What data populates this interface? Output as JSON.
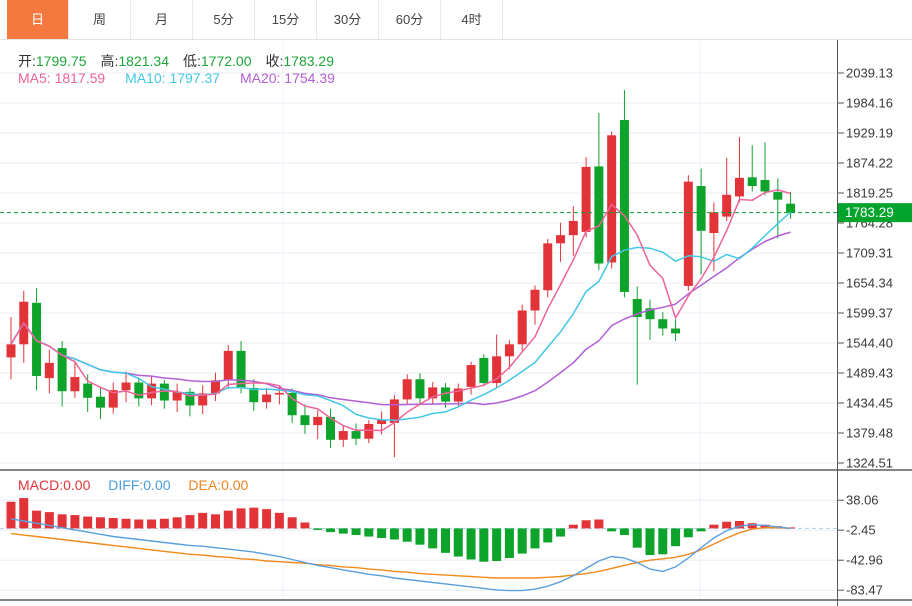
{
  "tabs": {
    "items": [
      {
        "label": "日",
        "active": true
      },
      {
        "label": "周",
        "active": false
      },
      {
        "label": "月",
        "active": false
      },
      {
        "label": "5分",
        "active": false
      },
      {
        "label": "15分",
        "active": false
      },
      {
        "label": "30分",
        "active": false
      },
      {
        "label": "60分",
        "active": false
      },
      {
        "label": "4时",
        "active": false
      }
    ]
  },
  "readout": {
    "open_label": "开:",
    "open": "1799.75",
    "high_label": "高:",
    "high": "1821.34",
    "low_label": "低:",
    "low": "1772.00",
    "close_label": "收:",
    "close": "1783.29",
    "ma5_label": "MA5:",
    "ma5": "1817.59",
    "ma10_label": "MA10:",
    "ma10": "1797.37",
    "ma20_label": "MA20:",
    "ma20": "1754.39",
    "macd_label": "MACD:",
    "macd": "0.00",
    "diff_label": "DIFF:",
    "diff": "0.00",
    "dea_label": "DEA:",
    "dea": "0.00"
  },
  "colors": {
    "accent_tab": "#f3793f",
    "up_candle": "#e23438",
    "down_candle": "#0ea32a",
    "value_green": "#1ca53a",
    "ma5": "#ee6399",
    "ma10": "#42c7e4",
    "ma20": "#b35fd5",
    "diff_line": "#5b9fdc",
    "dea_line": "#f08a1c",
    "badge_green": "#00a32b",
    "grid": "#e9eef5",
    "grid_vertical": "#eef2f7",
    "zero_dash": "#a9cde9",
    "price_dash": "#0ca32e",
    "axis": "#555555",
    "axis_text": "#3a3a3a",
    "panel_border": "#3c3c3c"
  },
  "chart_data": {
    "type": "candlestick",
    "panels": [
      "price",
      "macd"
    ],
    "convention": "red=up green=down",
    "grid": true,
    "legend_position": "none",
    "current_price": 1783.29,
    "ohlc_readout": {
      "open": 1799.75,
      "high": 1821.34,
      "low": 1772.0,
      "close": 1783.29
    },
    "ma_readout": {
      "ma5": 1817.59,
      "ma10": 1797.37,
      "ma20": 1754.39
    },
    "ma_periods": [
      5,
      10,
      20
    ],
    "price_axis_ticks": [
      "2039.13",
      "1984.16",
      "1929.19",
      "1874.22",
      "1819.25",
      "1764.28",
      "1709.31",
      "1654.34",
      "1599.37",
      "1544.40",
      "1489.43",
      "1434.45",
      "1379.48",
      "1324.51"
    ],
    "price_tick_step": 54.97,
    "price_ylim": [
      1311,
      2091
    ],
    "macd_axis_ticks": [
      "38.06",
      "-2.45",
      "-42.96",
      "-83.47"
    ],
    "macd_readout": {
      "macd": 0.0,
      "diff": 0.0,
      "dea": 0.0
    },
    "candles_ohlc_order": [
      "open",
      "high",
      "low",
      "close"
    ],
    "candles": [
      [
        1518,
        1592,
        1478,
        1542
      ],
      [
        1542,
        1640,
        1508,
        1620
      ],
      [
        1618,
        1645,
        1458,
        1484
      ],
      [
        1480,
        1532,
        1452,
        1508
      ],
      [
        1535,
        1548,
        1428,
        1456
      ],
      [
        1456,
        1512,
        1444,
        1482
      ],
      [
        1470,
        1487,
        1418,
        1444
      ],
      [
        1446,
        1462,
        1405,
        1426
      ],
      [
        1426,
        1472,
        1415,
        1458
      ],
      [
        1458,
        1492,
        1436,
        1472
      ],
      [
        1472,
        1480,
        1428,
        1443
      ],
      [
        1443,
        1484,
        1430,
        1470
      ],
      [
        1470,
        1477,
        1424,
        1439
      ],
      [
        1439,
        1470,
        1418,
        1455
      ],
      [
        1455,
        1462,
        1410,
        1430
      ],
      [
        1430,
        1467,
        1414,
        1452
      ],
      [
        1452,
        1490,
        1438,
        1476
      ],
      [
        1476,
        1541,
        1460,
        1530
      ],
      [
        1530,
        1548,
        1452,
        1462
      ],
      [
        1462,
        1478,
        1420,
        1436
      ],
      [
        1436,
        1462,
        1424,
        1450
      ],
      [
        1450,
        1466,
        1432,
        1453
      ],
      [
        1453,
        1461,
        1398,
        1412
      ],
      [
        1412,
        1432,
        1378,
        1394
      ],
      [
        1394,
        1421,
        1368,
        1409
      ],
      [
        1409,
        1424,
        1352,
        1367
      ],
      [
        1367,
        1392,
        1354,
        1383
      ],
      [
        1383,
        1397,
        1357,
        1369
      ],
      [
        1369,
        1403,
        1361,
        1396
      ],
      [
        1396,
        1419,
        1377,
        1404
      ],
      [
        1398,
        1449,
        1335,
        1441
      ],
      [
        1441,
        1487,
        1432,
        1478
      ],
      [
        1478,
        1489,
        1430,
        1443
      ],
      [
        1443,
        1473,
        1433,
        1463
      ],
      [
        1463,
        1471,
        1426,
        1437
      ],
      [
        1437,
        1470,
        1428,
        1461
      ],
      [
        1464,
        1510,
        1450,
        1504
      ],
      [
        1517,
        1524,
        1465,
        1471
      ],
      [
        1471,
        1560,
        1462,
        1520
      ],
      [
        1520,
        1550,
        1496,
        1542
      ],
      [
        1542,
        1615,
        1530,
        1604
      ],
      [
        1604,
        1650,
        1578,
        1642
      ],
      [
        1641,
        1735,
        1628,
        1727
      ],
      [
        1727,
        1765,
        1693,
        1742
      ],
      [
        1742,
        1795,
        1704,
        1768
      ],
      [
        1748,
        1885,
        1738,
        1867
      ],
      [
        1868,
        1966,
        1678,
        1690
      ],
      [
        1692,
        1932,
        1681,
        1925
      ],
      [
        1953,
        2008,
        1628,
        1638
      ],
      [
        1625,
        1648,
        1468,
        1592
      ],
      [
        1608,
        1624,
        1550,
        1588
      ],
      [
        1588,
        1601,
        1558,
        1571
      ],
      [
        1571,
        1588,
        1548,
        1562
      ],
      [
        1649,
        1852,
        1640,
        1840
      ],
      [
        1832,
        1864,
        1670,
        1750
      ],
      [
        1746,
        1802,
        1676,
        1784
      ],
      [
        1776,
        1884,
        1768,
        1816
      ],
      [
        1813,
        1922,
        1802,
        1847
      ],
      [
        1848,
        1907,
        1822,
        1832
      ],
      [
        1843,
        1912,
        1815,
        1822
      ],
      [
        1821,
        1846,
        1736,
        1807
      ],
      [
        1799.75,
        1821.34,
        1772,
        1783.29
      ]
    ],
    "macd": {
      "hist": [
        36,
        41,
        24,
        22,
        19,
        18,
        16,
        15,
        14,
        13,
        12,
        12,
        13,
        15,
        18,
        21,
        19,
        24,
        27,
        28,
        26,
        21,
        15,
        8,
        -2,
        -5,
        -7,
        -9,
        -11,
        -13,
        -15,
        -18,
        -22,
        -27,
        -33,
        -38,
        -42,
        -45,
        -44,
        -40,
        -34,
        -27,
        -19,
        -11,
        5,
        11,
        12,
        -4,
        -9,
        -26,
        -36,
        -35,
        -24,
        -12,
        -4,
        5,
        9,
        10,
        7,
        5,
        3,
        0
      ],
      "diff": [
        13,
        10,
        7,
        4,
        1,
        -2,
        -5,
        -8,
        -11,
        -13,
        -15,
        -17,
        -19,
        -21,
        -23,
        -24,
        -26,
        -28,
        -30,
        -32,
        -35,
        -38,
        -42,
        -46,
        -50,
        -53,
        -56,
        -59,
        -62,
        -64,
        -67,
        -69,
        -71,
        -73,
        -75,
        -77,
        -79,
        -81,
        -83,
        -84,
        -84,
        -82,
        -78,
        -72,
        -64,
        -54,
        -44,
        -38,
        -40,
        -46,
        -55,
        -58,
        -52,
        -40,
        -26,
        -13,
        -3,
        3,
        5,
        4,
        2,
        0
      ],
      "dea": [
        -7,
        -9,
        -11,
        -13,
        -15,
        -17,
        -19,
        -21,
        -23,
        -25,
        -27,
        -29,
        -31,
        -33,
        -35,
        -36,
        -38,
        -39,
        -41,
        -42,
        -44,
        -45,
        -46,
        -47,
        -49,
        -50,
        -52,
        -53,
        -55,
        -56,
        -58,
        -59,
        -61,
        -62,
        -63,
        -64,
        -65,
        -66,
        -67,
        -67,
        -67,
        -67,
        -66,
        -65,
        -63,
        -61,
        -58,
        -54,
        -50,
        -46,
        -43,
        -41,
        -39,
        -35,
        -29,
        -21,
        -13,
        -6,
        -1,
        1,
        1,
        0
      ]
    }
  }
}
